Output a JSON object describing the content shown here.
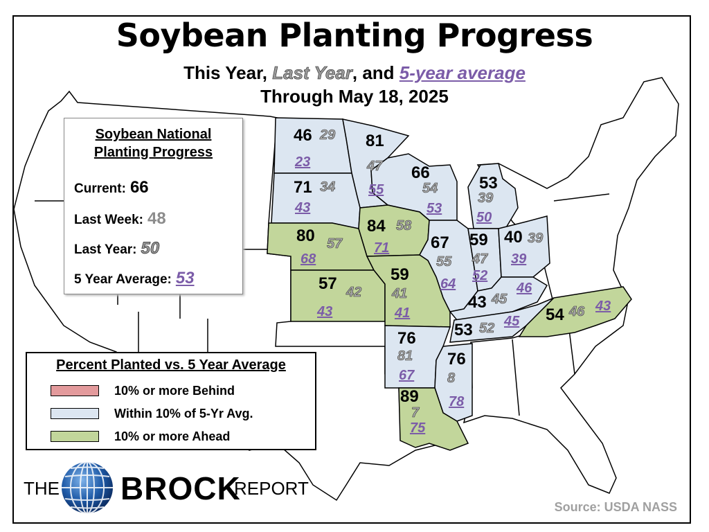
{
  "title": "Soybean Planting Progress",
  "subtitle": {
    "part1": "This Year, ",
    "last_year": "Last Year",
    "part2": ", and ",
    "avg": "5-year average"
  },
  "dateline": "Through May 18, 2025",
  "colors": {
    "behind": "#e39a9c",
    "within": "#dce6f1",
    "ahead": "#c2d69b",
    "last_year_text": "#aaaaaa",
    "avg_text": "#7b5ca8"
  },
  "national": {
    "heading_line1": "Soybean National",
    "heading_line2": "Planting Progress",
    "current_label": "Current:",
    "current_value": "66",
    "last_week_label": "Last Week:",
    "last_week_value": "48",
    "last_year_label": "Last Year:",
    "last_year_value": "50",
    "avg_label": "5 Year Average:",
    "avg_value": "53"
  },
  "legend": {
    "title": "Percent Planted vs. 5 Year Average",
    "items": [
      {
        "label": "10% or more Behind",
        "category": "behind"
      },
      {
        "label": "Within 10% of 5-Yr Avg.",
        "category": "within"
      },
      {
        "label": "10% or more Ahead",
        "category": "ahead"
      }
    ]
  },
  "states": [
    {
      "id": "ND",
      "category": "within",
      "current": "46",
      "last_year": "29",
      "avg": "23"
    },
    {
      "id": "MN",
      "category": "within",
      "current": "81",
      "last_year": "47",
      "avg": "55"
    },
    {
      "id": "SD",
      "category": "within",
      "current": "71",
      "last_year": "34",
      "avg": "43"
    },
    {
      "id": "WI",
      "category": "within",
      "current": "66",
      "last_year": "54",
      "avg": "53"
    },
    {
      "id": "MI",
      "category": "within",
      "current": "53",
      "last_year": "39",
      "avg": "50"
    },
    {
      "id": "NE",
      "category": "ahead",
      "current": "80",
      "last_year": "57",
      "avg": "68"
    },
    {
      "id": "IA",
      "category": "ahead",
      "current": "84",
      "last_year": "58",
      "avg": "71"
    },
    {
      "id": "IL",
      "category": "within",
      "current": "67",
      "last_year": "55",
      "avg": "64"
    },
    {
      "id": "IN",
      "category": "within",
      "current": "59",
      "last_year": "47",
      "avg": "52"
    },
    {
      "id": "OH",
      "category": "within",
      "current": "40",
      "last_year": "39",
      "avg": "39"
    },
    {
      "id": "KS",
      "category": "ahead",
      "current": "57",
      "last_year": "42",
      "avg": "43"
    },
    {
      "id": "MO",
      "category": "ahead",
      "current": "59",
      "last_year": "41",
      "avg": "41"
    },
    {
      "id": "KY",
      "category": "within",
      "current": "43",
      "last_year": "45",
      "avg": "46"
    },
    {
      "id": "TN",
      "category": "within",
      "current": "53",
      "last_year": "52",
      "avg": "45"
    },
    {
      "id": "NC",
      "category": "ahead",
      "current": "54",
      "last_year": "46",
      "avg": "43"
    },
    {
      "id": "AR",
      "category": "within",
      "current": "76",
      "last_year": "81",
      "avg": "67"
    },
    {
      "id": "MS",
      "category": "within",
      "current": "76",
      "last_year": "8",
      "avg": "78"
    },
    {
      "id": "LA",
      "category": "ahead",
      "current": "89",
      "last_year": "7",
      "avg": "75"
    }
  ],
  "logo": {
    "the": "THE",
    "brock": "BROCK",
    "report": "REPORT"
  },
  "source": "Source: USDA NASS"
}
